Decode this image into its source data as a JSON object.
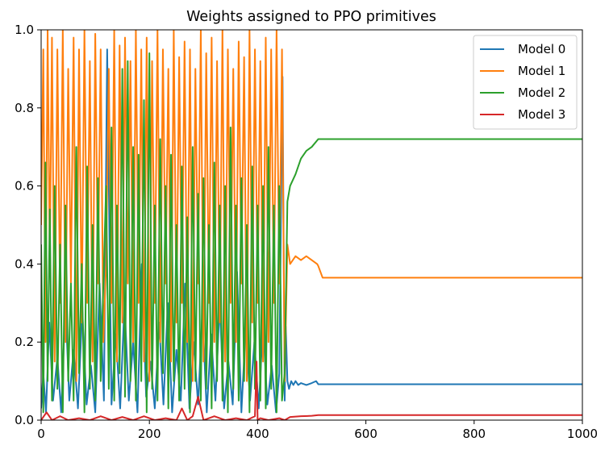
{
  "chart_data": {
    "type": "line",
    "title": "Weights assigned to PPO primitives",
    "xlabel": "",
    "ylabel": "",
    "xlim": [
      0,
      1000
    ],
    "ylim": [
      0.0,
      1.0
    ],
    "xticks": [
      0,
      200,
      400,
      600,
      800,
      1000
    ],
    "yticks": [
      0.0,
      0.2,
      0.4,
      0.6,
      0.8,
      1.0
    ],
    "xtick_labels": [
      "0",
      "200",
      "400",
      "600",
      "800",
      "1000"
    ],
    "ytick_labels": [
      "0.0",
      "0.2",
      "0.4",
      "0.6",
      "0.8",
      "1.0"
    ],
    "grid": false,
    "legend_position": "top-right",
    "series": [
      {
        "name": "Model 0",
        "color": "#1f77b4",
        "x": [
          0,
          4,
          9,
          15,
          22,
          30,
          37,
          45,
          52,
          60,
          68,
          76,
          84,
          92,
          100,
          108,
          116,
          122,
          130,
          138,
          146,
          154,
          162,
          170,
          178,
          186,
          194,
          202,
          210,
          218,
          226,
          234,
          242,
          250,
          258,
          266,
          274,
          282,
          290,
          298,
          306,
          314,
          322,
          330,
          338,
          346,
          354,
          362,
          370,
          378,
          386,
          394,
          402,
          410,
          418,
          426,
          434,
          440,
          446,
          450,
          452,
          455,
          458,
          462,
          466,
          470,
          475,
          480,
          490,
          500,
          508,
          512,
          530,
          600,
          700,
          800,
          900,
          1000
        ],
        "values": [
          0.03,
          0.12,
          0.02,
          0.25,
          0.05,
          0.16,
          0.02,
          0.3,
          0.05,
          0.18,
          0.03,
          0.28,
          0.04,
          0.14,
          0.02,
          0.35,
          0.05,
          0.95,
          0.04,
          0.22,
          0.03,
          0.3,
          0.05,
          0.2,
          0.02,
          0.4,
          0.06,
          0.15,
          0.03,
          0.25,
          0.04,
          0.3,
          0.02,
          0.18,
          0.05,
          0.35,
          0.03,
          0.2,
          0.04,
          0.28,
          0.02,
          0.22,
          0.05,
          0.3,
          0.03,
          0.15,
          0.04,
          0.38,
          0.02,
          0.24,
          0.05,
          0.2,
          0.03,
          0.25,
          0.04,
          0.14,
          0.02,
          0.12,
          0.88,
          0.05,
          0.24,
          0.1,
          0.08,
          0.1,
          0.09,
          0.1,
          0.09,
          0.095,
          0.09,
          0.095,
          0.1,
          0.092,
          0.092,
          0.092,
          0.092,
          0.092,
          0.092,
          0.092
        ]
      },
      {
        "name": "Model 1",
        "color": "#ff7f0e",
        "x": [
          0,
          4,
          8,
          12,
          16,
          20,
          25,
          30,
          35,
          40,
          45,
          50,
          55,
          60,
          65,
          70,
          75,
          80,
          85,
          90,
          95,
          100,
          105,
          110,
          115,
          120,
          125,
          130,
          135,
          140,
          145,
          150,
          155,
          160,
          165,
          170,
          175,
          180,
          185,
          190,
          195,
          200,
          205,
          210,
          215,
          220,
          225,
          230,
          235,
          240,
          245,
          250,
          255,
          260,
          265,
          270,
          275,
          280,
          285,
          290,
          295,
          300,
          305,
          310,
          315,
          320,
          325,
          330,
          335,
          340,
          345,
          350,
          355,
          360,
          365,
          370,
          375,
          380,
          385,
          390,
          395,
          400,
          405,
          410,
          415,
          420,
          425,
          430,
          435,
          440,
          445,
          450,
          455,
          460,
          470,
          480,
          490,
          500,
          510,
          512,
          520,
          600,
          700,
          800,
          900,
          1000
        ],
        "values": [
          0.5,
          0.95,
          0.2,
          1.0,
          0.4,
          0.98,
          0.15,
          0.95,
          0.3,
          1.0,
          0.2,
          0.9,
          0.35,
          0.98,
          0.1,
          0.95,
          0.25,
          1.0,
          0.3,
          0.92,
          0.15,
          0.99,
          0.35,
          0.95,
          0.2,
          0.4,
          0.9,
          0.3,
          1.0,
          0.15,
          0.96,
          0.25,
          0.98,
          0.35,
          0.92,
          0.2,
          1.0,
          0.3,
          0.95,
          0.15,
          0.98,
          0.1,
          0.92,
          0.3,
          1.0,
          0.2,
          0.95,
          0.35,
          0.9,
          0.15,
          1.0,
          0.25,
          0.93,
          0.3,
          0.97,
          0.2,
          0.95,
          0.1,
          0.9,
          0.35,
          1.0,
          0.15,
          0.94,
          0.3,
          0.98,
          0.2,
          0.92,
          0.25,
          1.0,
          0.15,
          0.95,
          0.3,
          0.9,
          0.2,
          0.97,
          0.35,
          0.93,
          0.1,
          1.0,
          0.25,
          0.95,
          0.3,
          0.92,
          0.15,
          0.98,
          0.2,
          0.95,
          0.3,
          1.0,
          0.35,
          0.95,
          0.1,
          0.45,
          0.4,
          0.42,
          0.41,
          0.42,
          0.41,
          0.4,
          0.395,
          0.365,
          0.365,
          0.365,
          0.365,
          0.365,
          0.365
        ]
      },
      {
        "name": "Model 2",
        "color": "#2ca02c",
        "x": [
          0,
          4,
          8,
          12,
          16,
          20,
          25,
          30,
          35,
          40,
          45,
          50,
          55,
          60,
          65,
          70,
          75,
          80,
          85,
          90,
          95,
          100,
          105,
          110,
          115,
          120,
          125,
          130,
          135,
          140,
          145,
          150,
          155,
          160,
          165,
          170,
          175,
          180,
          185,
          190,
          195,
          200,
          205,
          210,
          215,
          220,
          225,
          230,
          235,
          240,
          245,
          250,
          255,
          260,
          265,
          270,
          275,
          280,
          285,
          290,
          295,
          300,
          305,
          310,
          315,
          320,
          325,
          330,
          335,
          340,
          345,
          350,
          355,
          360,
          365,
          370,
          375,
          380,
          385,
          390,
          395,
          400,
          405,
          410,
          415,
          420,
          425,
          430,
          435,
          440,
          445,
          450,
          455,
          460,
          470,
          480,
          490,
          500,
          512,
          520,
          600,
          700,
          800,
          900,
          1000
        ],
        "values": [
          0.45,
          0.02,
          0.66,
          0.1,
          0.54,
          0.05,
          0.6,
          0.08,
          0.45,
          0.02,
          0.55,
          0.1,
          0.35,
          0.05,
          0.7,
          0.12,
          0.4,
          0.02,
          0.65,
          0.08,
          0.5,
          0.05,
          0.62,
          0.1,
          0.35,
          0.6,
          0.08,
          0.75,
          0.05,
          0.55,
          0.12,
          0.9,
          0.06,
          0.92,
          0.1,
          0.7,
          0.05,
          0.68,
          0.1,
          0.82,
          0.02,
          0.94,
          0.08,
          0.55,
          0.05,
          0.72,
          0.12,
          0.6,
          0.03,
          0.68,
          0.1,
          0.5,
          0.05,
          0.65,
          0.08,
          0.52,
          0.02,
          0.7,
          0.1,
          0.58,
          0.05,
          0.62,
          0.08,
          0.5,
          0.03,
          0.66,
          0.1,
          0.55,
          0.05,
          0.6,
          0.02,
          0.75,
          0.08,
          0.55,
          0.05,
          0.62,
          0.1,
          0.5,
          0.02,
          0.65,
          0.08,
          0.55,
          0.05,
          0.6,
          0.03,
          0.7,
          0.08,
          0.55,
          0.02,
          0.6,
          0.05,
          0.12,
          0.56,
          0.6,
          0.63,
          0.67,
          0.69,
          0.7,
          0.72,
          0.72,
          0.72,
          0.72,
          0.72,
          0.72,
          0.72
        ]
      },
      {
        "name": "Model 3",
        "color": "#d62728",
        "x": [
          0,
          10,
          20,
          35,
          50,
          70,
          90,
          110,
          130,
          150,
          170,
          190,
          210,
          230,
          250,
          260,
          270,
          280,
          290,
          300,
          320,
          340,
          360,
          380,
          395,
          398,
          400,
          405,
          420,
          440,
          450,
          460,
          480,
          500,
          512,
          600,
          700,
          800,
          900,
          1000
        ],
        "values": [
          0.0,
          0.02,
          0.0,
          0.01,
          0.0,
          0.005,
          0.0,
          0.01,
          0.0,
          0.008,
          0.0,
          0.01,
          0.0,
          0.005,
          0.0,
          0.03,
          0.0,
          0.01,
          0.06,
          0.0,
          0.01,
          0.0,
          0.005,
          0.0,
          0.01,
          0.15,
          0.0,
          0.005,
          0.0,
          0.005,
          0.0,
          0.008,
          0.01,
          0.011,
          0.013,
          0.013,
          0.013,
          0.013,
          0.013,
          0.013
        ]
      }
    ]
  }
}
